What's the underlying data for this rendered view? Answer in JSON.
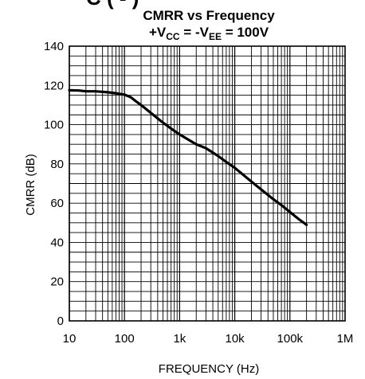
{
  "chart_data": {
    "type": "line",
    "title_top_fragment": "C  (   ‑ )",
    "title": "CMRR vs Frequency",
    "subtitle": {
      "p1": "+V",
      "s1": "CC",
      "p2": " = -V",
      "s2": "EE",
      "p3": " = 100V"
    },
    "xlabel": "FREQUENCY (Hz)",
    "ylabel": "CMRR (dB)",
    "x_scale": "log",
    "xlim": [
      10,
      1000000
    ],
    "ylim": [
      0,
      140
    ],
    "x_ticks": [
      {
        "value": 10,
        "label": "10"
      },
      {
        "value": 100,
        "label": "100"
      },
      {
        "value": 1000,
        "label": "1k"
      },
      {
        "value": 10000,
        "label": "10k"
      },
      {
        "value": 100000,
        "label": "100k"
      },
      {
        "value": 1000000,
        "label": "1M"
      }
    ],
    "y_ticks": [
      0,
      20,
      40,
      60,
      80,
      100,
      120,
      140
    ],
    "grid": true,
    "series": [
      {
        "color": "#000000",
        "x": [
          10,
          15,
          20,
          30,
          50,
          70,
          100,
          130,
          160,
          200,
          300,
          500,
          700,
          1000,
          2000,
          3000,
          5000,
          7000,
          10000,
          20000,
          30000,
          50000,
          70000,
          100000,
          150000,
          200000
        ],
        "y": [
          117.5,
          117.4,
          117,
          117,
          116.5,
          116,
          115.3,
          114,
          112,
          110,
          106,
          101,
          98,
          95,
          90,
          88,
          84,
          81,
          78,
          71,
          67,
          62,
          59,
          55.5,
          51.5,
          49
        ]
      }
    ]
  }
}
